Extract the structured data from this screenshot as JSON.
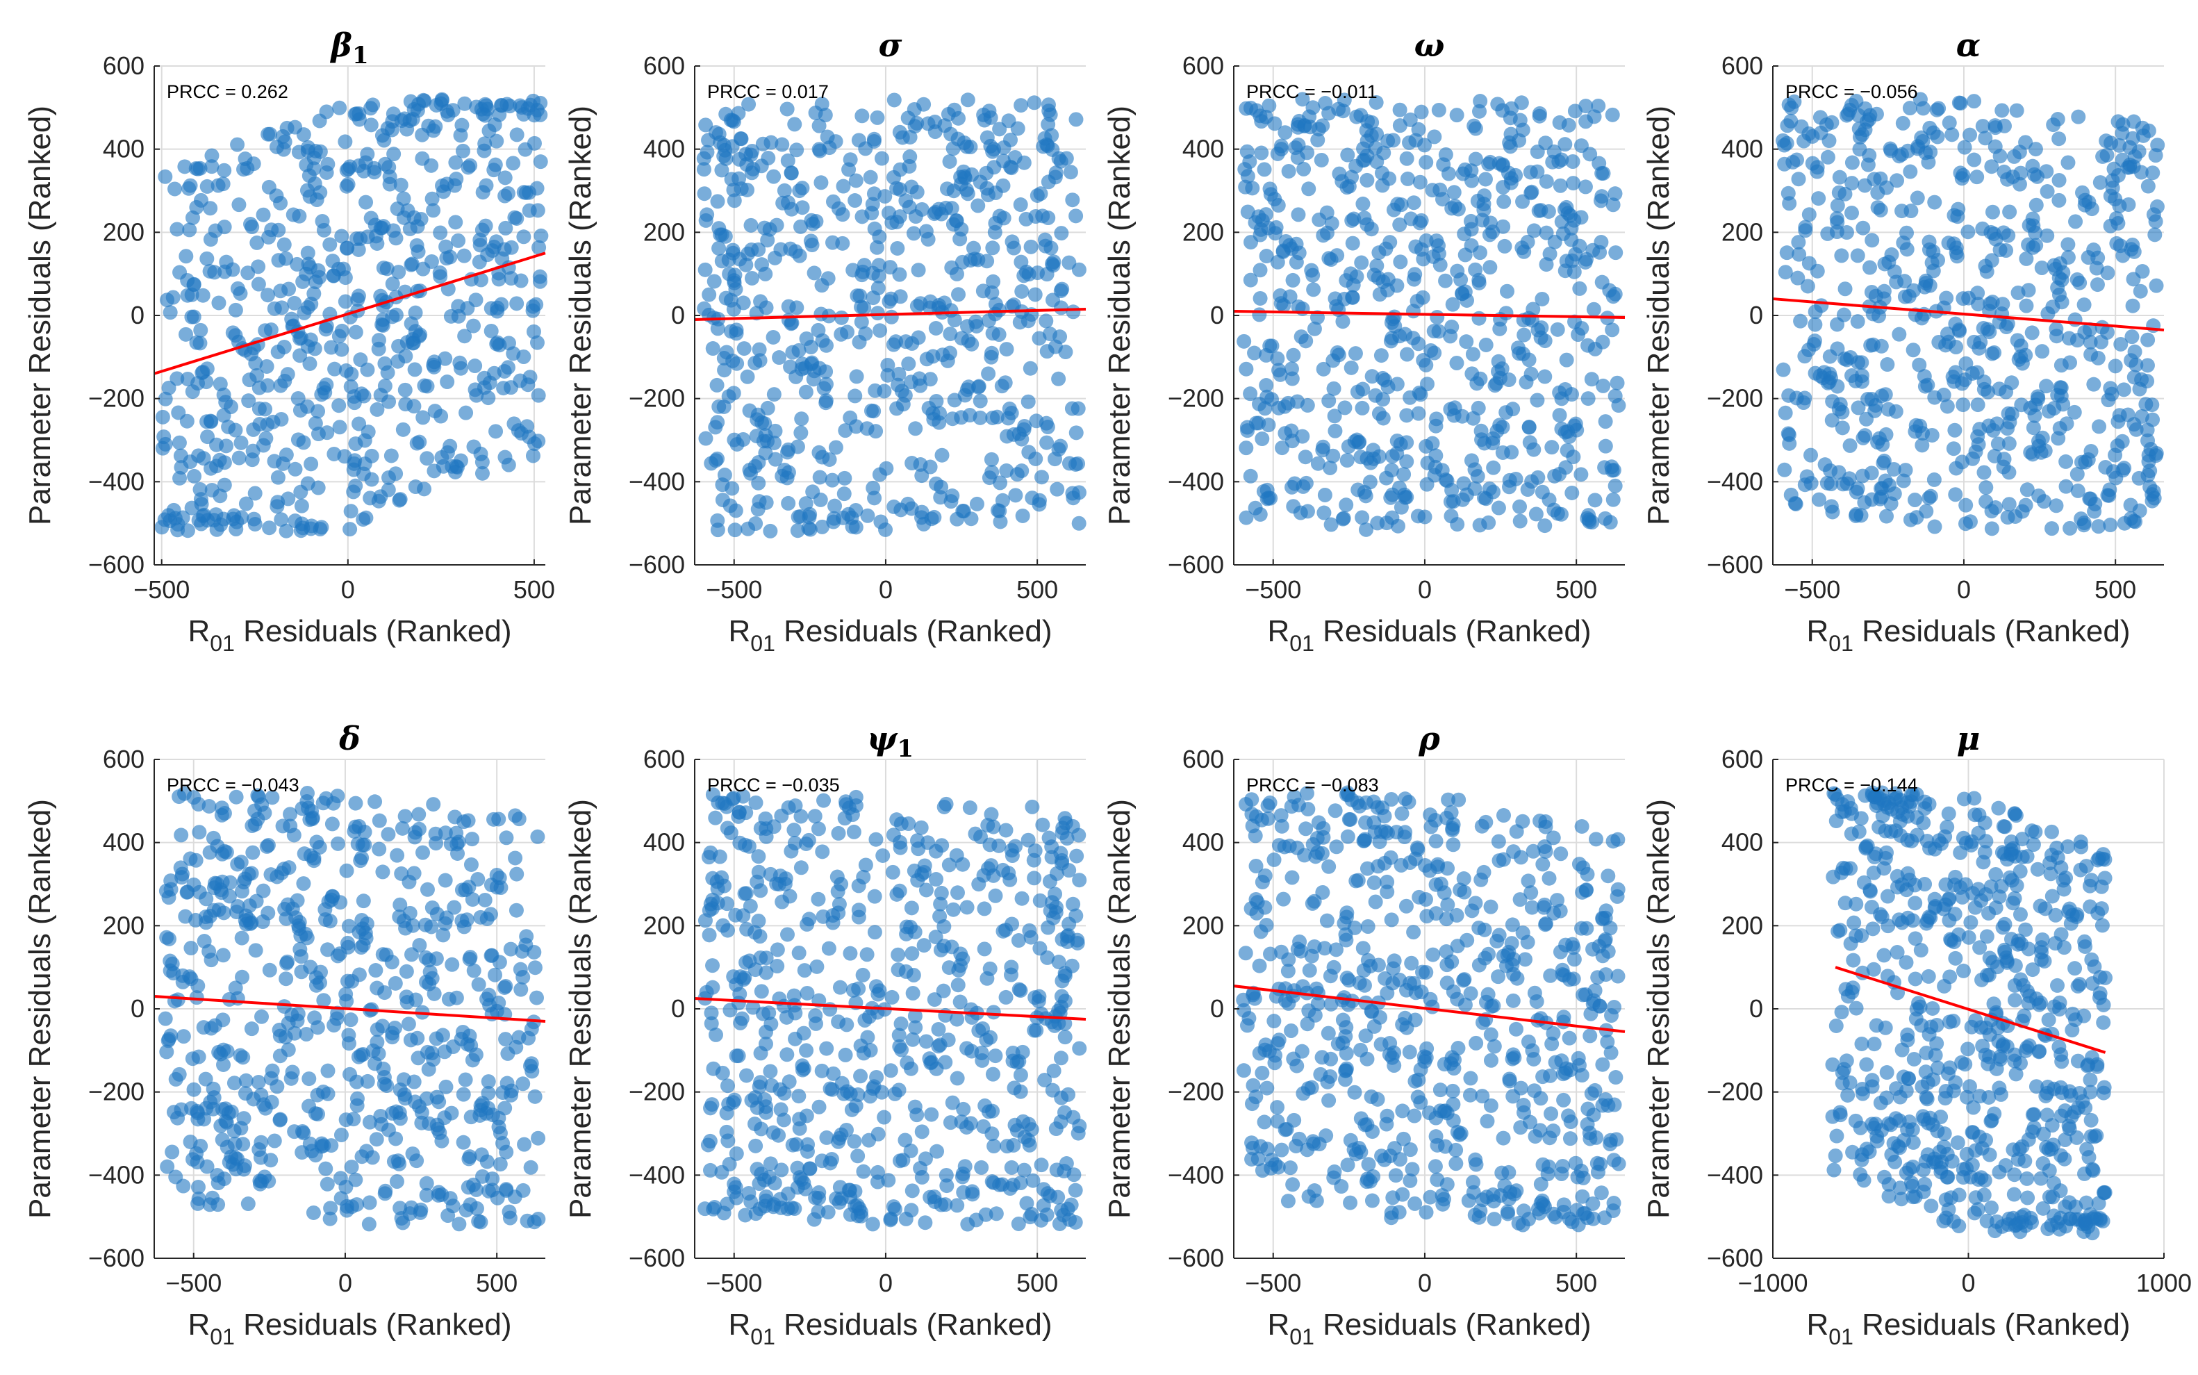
{
  "figure": {
    "marker_color": "#1f77c2",
    "fit_color": "#ff0000",
    "grid_color": "#dcdcdc",
    "axis_color": "#262626"
  },
  "chart_data": [
    {
      "type": "scatter",
      "title": "β",
      "title_subscript": "1",
      "prcc_text": "PRCC = 0.262",
      "prcc": 0.262,
      "xlabel": "R",
      "xlabel_subscript": "01",
      "xlabel_suffix": " Residuals (Ranked)",
      "ylabel": "Parameter Residuals (Ranked)",
      "xlim": [
        -520,
        530
      ],
      "ylim": [
        -600,
        600
      ],
      "xticks": [
        -500,
        0,
        500
      ],
      "xtick_labels": [
        "−500",
        "0",
        "500"
      ],
      "yticks": [
        -600,
        -400,
        -200,
        0,
        200,
        400,
        600
      ],
      "ytick_labels": [
        "−600",
        "−400",
        "−200",
        "0",
        "200",
        "400",
        "600"
      ],
      "fit_line": [
        [
          -520,
          -140
        ],
        [
          530,
          150
        ]
      ],
      "scatter_seed": 11,
      "scatter_n": 650,
      "scatter_x_range": [
        -500,
        520
      ],
      "scatter_y_range": [
        -520,
        520
      ]
    },
    {
      "type": "scatter",
      "title": "σ",
      "title_subscript": "",
      "prcc_text": "PRCC = 0.017",
      "prcc": 0.017,
      "xlabel": "R",
      "xlabel_subscript": "01",
      "xlabel_suffix": " Residuals (Ranked)",
      "ylabel": "Parameter Residuals (Ranked)",
      "xlim": [
        -630,
        660
      ],
      "ylim": [
        -600,
        600
      ],
      "xticks": [
        -500,
        0,
        500
      ],
      "xtick_labels": [
        "−500",
        "0",
        "500"
      ],
      "yticks": [
        -600,
        -400,
        -200,
        0,
        200,
        400,
        600
      ],
      "ytick_labels": [
        "−600",
        "−400",
        "−200",
        "0",
        "200",
        "400",
        "600"
      ],
      "fit_line": [
        [
          -630,
          -10
        ],
        [
          660,
          15
        ]
      ],
      "scatter_seed": 23,
      "scatter_n": 650,
      "scatter_x_range": [
        -600,
        640
      ],
      "scatter_y_range": [
        -520,
        520
      ]
    },
    {
      "type": "scatter",
      "title": "ω",
      "title_subscript": "",
      "prcc_text": "PRCC = −0.011",
      "prcc": -0.011,
      "xlabel": "R",
      "xlabel_subscript": "01",
      "xlabel_suffix": " Residuals (Ranked)",
      "ylabel": "Parameter Residuals (Ranked)",
      "xlim": [
        -630,
        660
      ],
      "ylim": [
        -600,
        600
      ],
      "xticks": [
        -500,
        0,
        500
      ],
      "xtick_labels": [
        "−500",
        "0",
        "500"
      ],
      "yticks": [
        -600,
        -400,
        -200,
        0,
        200,
        400,
        600
      ],
      "ytick_labels": [
        "−600",
        "−400",
        "−200",
        "0",
        "200",
        "400",
        "600"
      ],
      "fit_line": [
        [
          -630,
          10
        ],
        [
          660,
          -5
        ]
      ],
      "scatter_seed": 37,
      "scatter_n": 650,
      "scatter_x_range": [
        -600,
        640
      ],
      "scatter_y_range": [
        -520,
        520
      ]
    },
    {
      "type": "scatter",
      "title": "α",
      "title_subscript": "",
      "prcc_text": "PRCC = −0.056",
      "prcc": -0.056,
      "xlabel": "R",
      "xlabel_subscript": "01",
      "xlabel_suffix": " Residuals (Ranked)",
      "ylabel": "Parameter Residuals (Ranked)",
      "xlim": [
        -630,
        660
      ],
      "ylim": [
        -600,
        600
      ],
      "xticks": [
        -500,
        0,
        500
      ],
      "xtick_labels": [
        "−500",
        "0",
        "500"
      ],
      "yticks": [
        -600,
        -400,
        -200,
        0,
        200,
        400,
        600
      ],
      "ytick_labels": [
        "−600",
        "−400",
        "−200",
        "0",
        "200",
        "400",
        "600"
      ],
      "fit_line": [
        [
          -630,
          40
        ],
        [
          660,
          -35
        ]
      ],
      "scatter_seed": 41,
      "scatter_n": 650,
      "scatter_x_range": [
        -600,
        640
      ],
      "scatter_y_range": [
        -520,
        520
      ]
    },
    {
      "type": "scatter",
      "title": "δ",
      "title_subscript": "",
      "prcc_text": "PRCC = −0.043",
      "prcc": -0.043,
      "xlabel": "R",
      "xlabel_subscript": "01",
      "xlabel_suffix": " Residuals (Ranked)",
      "ylabel": "Parameter Residuals (Ranked)",
      "xlim": [
        -630,
        660
      ],
      "ylim": [
        -600,
        600
      ],
      "xticks": [
        -500,
        0,
        500
      ],
      "xtick_labels": [
        "−500",
        "0",
        "500"
      ],
      "yticks": [
        -600,
        -400,
        -200,
        0,
        200,
        400,
        600
      ],
      "ytick_labels": [
        "−600",
        "−400",
        "−200",
        "0",
        "200",
        "400",
        "600"
      ],
      "fit_line": [
        [
          -630,
          30
        ],
        [
          660,
          -30
        ]
      ],
      "scatter_seed": 53,
      "scatter_n": 650,
      "scatter_x_range": [
        -600,
        640
      ],
      "scatter_y_range": [
        -520,
        520
      ]
    },
    {
      "type": "scatter",
      "title": "ψ",
      "title_subscript": "1",
      "prcc_text": "PRCC = −0.035",
      "prcc": -0.035,
      "xlabel": "R",
      "xlabel_subscript": "01",
      "xlabel_suffix": " Residuals (Ranked)",
      "ylabel": "Parameter Residuals (Ranked)",
      "xlim": [
        -630,
        660
      ],
      "ylim": [
        -600,
        600
      ],
      "xticks": [
        -500,
        0,
        500
      ],
      "xtick_labels": [
        "−500",
        "0",
        "500"
      ],
      "yticks": [
        -600,
        -400,
        -200,
        0,
        200,
        400,
        600
      ],
      "ytick_labels": [
        "−600",
        "−400",
        "−200",
        "0",
        "200",
        "400",
        "600"
      ],
      "fit_line": [
        [
          -630,
          25
        ],
        [
          660,
          -25
        ]
      ],
      "scatter_seed": 67,
      "scatter_n": 650,
      "scatter_x_range": [
        -600,
        640
      ],
      "scatter_y_range": [
        -520,
        520
      ]
    },
    {
      "type": "scatter",
      "title": "ρ",
      "title_subscript": "",
      "prcc_text": "PRCC = −0.083",
      "prcc": -0.083,
      "xlabel": "R",
      "xlabel_subscript": "01",
      "xlabel_suffix": " Residuals (Ranked)",
      "ylabel": "Parameter Residuals (Ranked)",
      "xlim": [
        -630,
        660
      ],
      "ylim": [
        -600,
        600
      ],
      "xticks": [
        -500,
        0,
        500
      ],
      "xtick_labels": [
        "−500",
        "0",
        "500"
      ],
      "yticks": [
        -600,
        -400,
        -200,
        0,
        200,
        400,
        600
      ],
      "ytick_labels": [
        "−600",
        "−400",
        "−200",
        "0",
        "200",
        "400",
        "600"
      ],
      "fit_line": [
        [
          -630,
          55
        ],
        [
          660,
          -55
        ]
      ],
      "scatter_seed": 79,
      "scatter_n": 650,
      "scatter_x_range": [
        -600,
        640
      ],
      "scatter_y_range": [
        -520,
        520
      ]
    },
    {
      "type": "scatter",
      "title": "μ",
      "title_subscript": "",
      "prcc_text": "PRCC = −0.144",
      "prcc": -0.144,
      "xlabel": "R",
      "xlabel_subscript": "01",
      "xlabel_suffix": " Residuals (Ranked)",
      "ylabel": "Parameter Residuals (Ranked)",
      "xlim": [
        -1000,
        1000
      ],
      "ylim": [
        -600,
        600
      ],
      "xticks": [
        -1000,
        0,
        1000
      ],
      "xtick_labels": [
        "−1000",
        "0",
        "1000"
      ],
      "yticks": [
        -600,
        -400,
        -200,
        0,
        200,
        400,
        600
      ],
      "ytick_labels": [
        "−600",
        "−400",
        "−200",
        "0",
        "200",
        "400",
        "600"
      ],
      "fit_line": [
        [
          -680,
          100
        ],
        [
          700,
          -105
        ]
      ],
      "scatter_seed": 97,
      "scatter_n": 650,
      "scatter_x_range": [
        -700,
        700
      ],
      "scatter_y_range": [
        -540,
        520
      ]
    }
  ]
}
